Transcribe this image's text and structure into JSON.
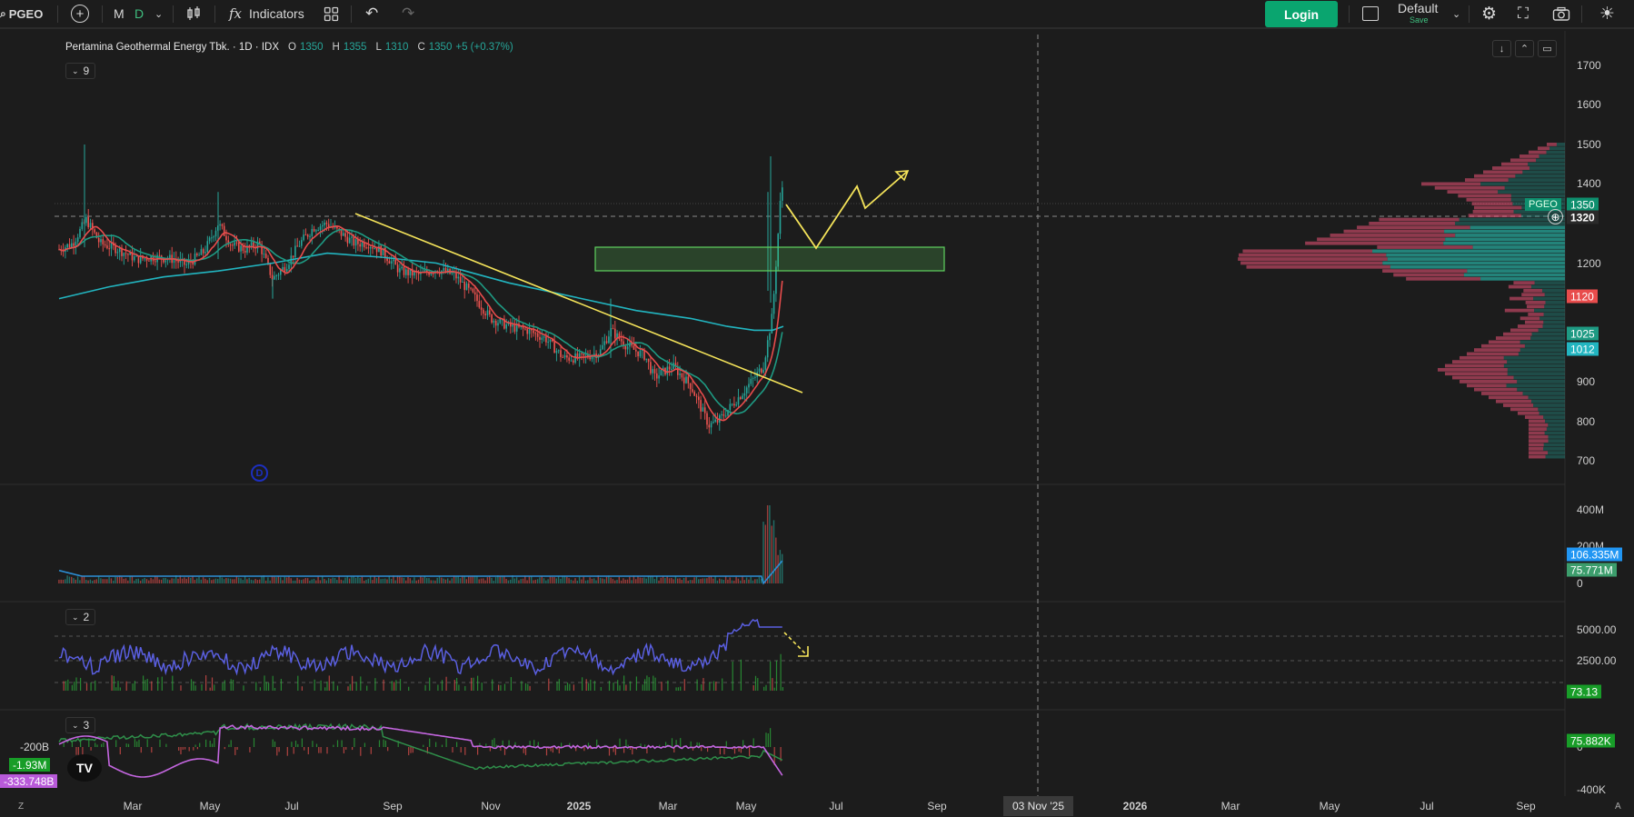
{
  "toolbar": {
    "search_icon": "magnifier-icon",
    "symbol": "PGEO",
    "add_symbol_icon": "plus-circle-icon",
    "interval_m": "M",
    "interval_d": "D",
    "chart_type_icon": "candles-icon",
    "indicators_fx": "fx",
    "indicators_label": "Indicators",
    "templates_icon": "grid-icon",
    "undo_icon": "↶",
    "redo_icon": "↷",
    "login_label": "Login",
    "layout_name": "Default",
    "save_label": "Save",
    "settings_icon": "⚙",
    "fullscreen_icon": "⛶",
    "snapshot_icon": "📷",
    "theme_icon": "☀",
    "accent": "#0aa56f"
  },
  "legend": {
    "name": "Pertamina Geothermal Energy Tbk. · 1D · IDX",
    "o_label": "O",
    "o": "1350",
    "h_label": "H",
    "h": "1355",
    "l_label": "L",
    "l": "1310",
    "c_label": "C",
    "c": "1350",
    "change": "+5 (+0.37%)",
    "collapse_count": "9"
  },
  "panes": {
    "volume": {},
    "indicator2": {
      "collapse_count": "2"
    },
    "indicator3": {
      "collapse_count": "3"
    }
  },
  "price_axis": {
    "labels": [
      "1700",
      "1600",
      "1500",
      "1400",
      "1300",
      "1200",
      "1100",
      "1000",
      "900",
      "800",
      "700"
    ],
    "tag_last": "1350",
    "tag_crosshair": "1320",
    "tag_ma_red": "1120",
    "tag_ma_green": "1025",
    "tag_ma_teal": "1012",
    "symbol_tag": "PGEO",
    "crosshair_icon": "⊕"
  },
  "volume_axis": {
    "labels": [
      "400M",
      "200M",
      "0"
    ],
    "tag_ma": "106.335M",
    "tag_vol": "75.771M"
  },
  "pane2_axis": {
    "labels": [
      "5000.00",
      "2500.00"
    ],
    "tag": "73.13"
  },
  "pane3_axis": {
    "labels": [
      "0",
      "-400K"
    ],
    "tag": "75.882K",
    "left_labels": [
      "-200B",
      "-1.93M",
      "-333.748B"
    ]
  },
  "time_axis": {
    "labels": [
      "Mar",
      "May",
      "Jul",
      "Sep",
      "Nov",
      "2025",
      "Mar",
      "May",
      "Jul",
      "Sep",
      "2026",
      "Mar",
      "May",
      "Jul",
      "Sep"
    ],
    "crosshair_date": "03 Nov '25"
  },
  "corner": {
    "z": "Z",
    "a": "A",
    "logo": "TV",
    "marker": "D"
  },
  "colors": {
    "up": "#26a69a",
    "down": "#ef5350",
    "ma_red": "#e84c4c",
    "ma_green": "#1e9a83",
    "ma_teal": "#22b5c0",
    "drawing": "#f5e45a",
    "zone_border": "#5fd35f"
  }
}
